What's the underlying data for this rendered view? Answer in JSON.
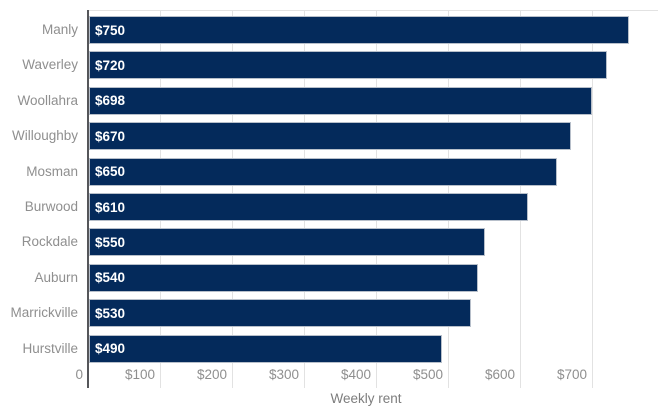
{
  "chart_data": {
    "type": "bar",
    "orientation": "horizontal",
    "title": "",
    "xlabel": "Weekly rent",
    "ylabel": "",
    "categories": [
      "Manly",
      "Waverley",
      "Woollahra",
      "Willoughby",
      "Mosman",
      "Burwood",
      "Rockdale",
      "Auburn",
      "Marrickville",
      "Hurstville"
    ],
    "values": [
      750,
      720,
      698,
      670,
      650,
      610,
      550,
      540,
      530,
      490
    ],
    "value_labels": [
      "$750",
      "$720",
      "$698",
      "$670",
      "$650",
      "$610",
      "$550",
      "$540",
      "$530",
      "$490"
    ],
    "x_ticks": [
      {
        "value": 0,
        "label": "0"
      },
      {
        "value": 100,
        "label": "$100"
      },
      {
        "value": 200,
        "label": "$200"
      },
      {
        "value": 300,
        "label": "$300"
      },
      {
        "value": 400,
        "label": "$400"
      },
      {
        "value": 500,
        "label": "$500"
      },
      {
        "value": 600,
        "label": "$600"
      },
      {
        "value": 700,
        "label": "$700"
      }
    ],
    "xlim": [
      0,
      792
    ],
    "grid": true,
    "legend": "none",
    "colors": {
      "bar_fill": "#042a5b",
      "bar_border": "#b7bfca",
      "gridline": "#e2e2e2",
      "axis_line": "#55565a",
      "tick_label": "#8f8f8f",
      "category_label": "#8f8f8f",
      "value_label": "#ffffff",
      "axis_title": "#7d7d7d",
      "background": "#ffffff"
    }
  }
}
